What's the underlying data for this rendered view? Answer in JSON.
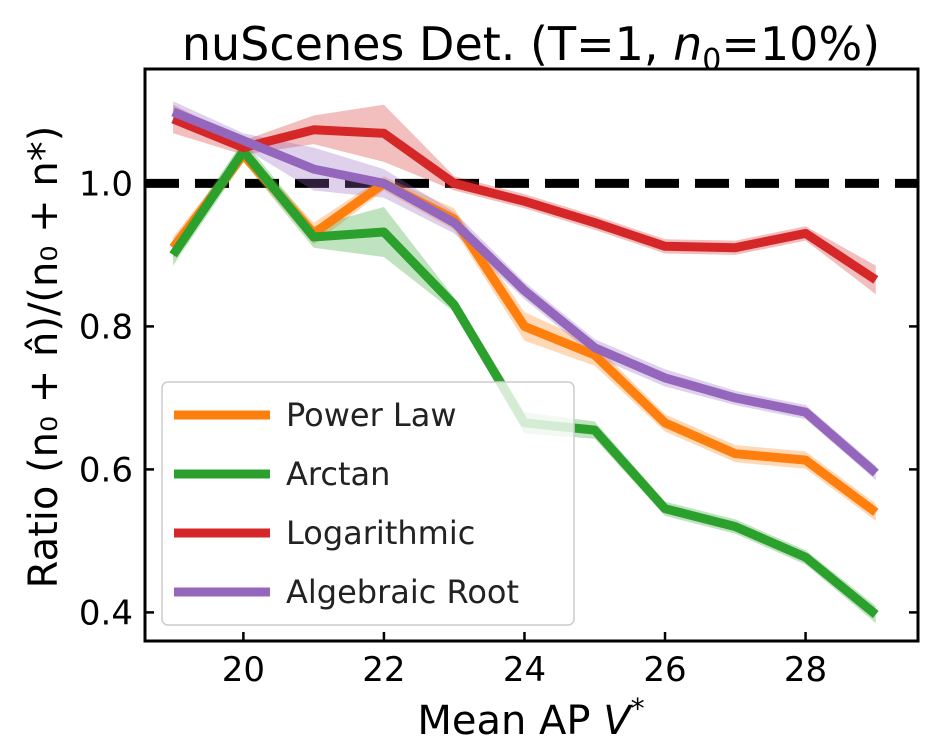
{
  "chart_data": {
    "type": "line",
    "title_main": "nuScenes Det. (T=1, ",
    "title_var": "n",
    "title_sub": "0",
    "title_tail": "=10%)",
    "xlabel_main": "Mean AP ",
    "xlabel_var": "V",
    "xlabel_sup": "*",
    "ylabel": "Ratio (n₀ + n̂)/(n₀ + n*)",
    "xlim": [
      18.6,
      29.6
    ],
    "ylim": [
      0.36,
      1.16
    ],
    "xticks": [
      20,
      22,
      24,
      26,
      28
    ],
    "xtick_labels": [
      "20",
      "22",
      "24",
      "26",
      "28"
    ],
    "yticks": [
      0.4,
      0.6,
      0.8,
      1.0
    ],
    "ytick_labels": [
      "0.4",
      "0.6",
      "0.8",
      "1.0"
    ],
    "reference_line": {
      "y": 1.0,
      "style": "dashed",
      "color": "#000000"
    },
    "legend_position": "lower-left",
    "x": [
      19,
      20,
      21,
      22,
      23,
      24,
      25,
      26,
      27,
      28,
      29
    ],
    "series": [
      {
        "name": "Power Law",
        "color": "#ff7f0e",
        "values": [
          0.91,
          1.04,
          0.93,
          1.0,
          0.95,
          0.8,
          0.76,
          0.665,
          0.622,
          0.613,
          0.54
        ],
        "band": [
          0.015,
          0.01,
          0.015,
          0.01,
          0.015,
          0.02,
          0.015,
          0.012,
          0.012,
          0.012,
          0.012
        ]
      },
      {
        "name": "Arctan",
        "color": "#2ca02c",
        "values": [
          0.9,
          1.045,
          0.925,
          0.932,
          0.83,
          0.665,
          0.655,
          0.545,
          0.52,
          0.477,
          0.397
        ],
        "band": [
          0.015,
          0.015,
          0.015,
          0.035,
          0.01,
          0.015,
          0.012,
          0.01,
          0.01,
          0.01,
          0.012
        ]
      },
      {
        "name": "Logarithmic",
        "color": "#d62728",
        "values": [
          1.09,
          1.05,
          1.075,
          1.07,
          1.0,
          0.975,
          0.945,
          0.912,
          0.91,
          0.93,
          0.865
        ],
        "band": [
          0.02,
          0.01,
          0.02,
          0.04,
          0.01,
          0.01,
          0.01,
          0.01,
          0.01,
          0.01,
          0.02
        ]
      },
      {
        "name": "Algebraic Root",
        "color": "#9467bd",
        "values": [
          1.1,
          1.06,
          1.02,
          1.0,
          0.945,
          0.85,
          0.77,
          0.728,
          0.7,
          0.68,
          0.595
        ],
        "band": [
          0.015,
          0.01,
          0.03,
          0.02,
          0.015,
          0.012,
          0.012,
          0.012,
          0.01,
          0.01,
          0.01
        ]
      }
    ]
  }
}
